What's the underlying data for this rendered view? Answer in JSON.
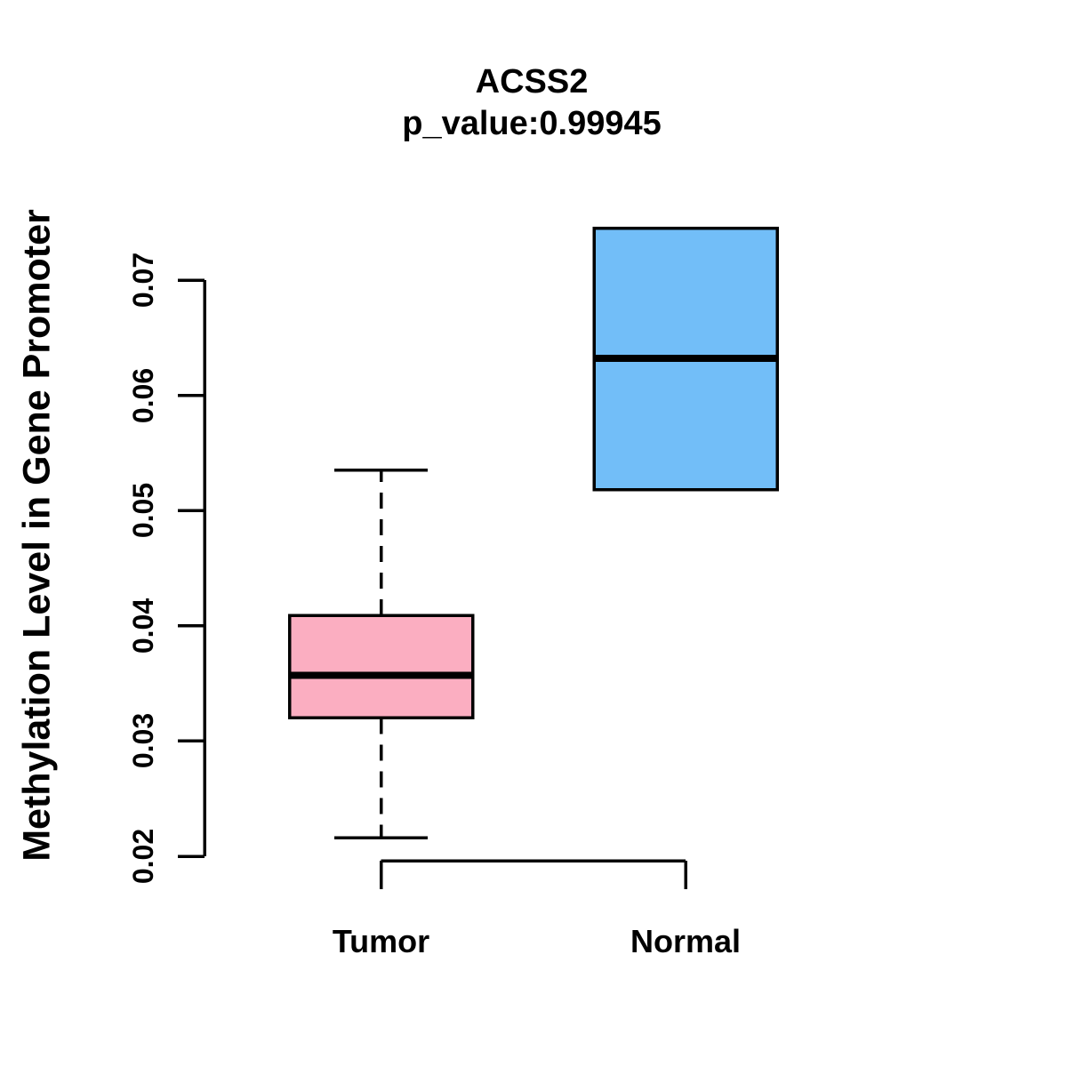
{
  "figure": {
    "background_color": "#ffffff",
    "text_color": "#000000"
  },
  "chart_data": {
    "type": "boxplot",
    "orientation": "vertical",
    "title": "ACSS2",
    "subtitle": "p_value:0.99945",
    "p_value": 0.99945,
    "xlabel": "",
    "ylabel": "Methylation Level in Gene Promoter",
    "ylim": [
      0.02,
      0.075
    ],
    "yticks": [
      0.02,
      0.03,
      0.04,
      0.05,
      0.06,
      0.07
    ],
    "ytick_labels": [
      "0.02",
      "0.03",
      "0.04",
      "0.05",
      "0.06",
      "0.07"
    ],
    "categories": [
      "Tumor",
      "Normal"
    ],
    "grid": false,
    "legend": "none",
    "axis_color": "#000000",
    "series": [
      {
        "name": "Tumor",
        "fill_color": "#FBAEC1",
        "border_color": "#000000",
        "whisker_low": 0.0216,
        "q1": 0.032,
        "median": 0.0357,
        "q3": 0.0409,
        "whisker_high": 0.0535,
        "whisker_style": "dashed"
      },
      {
        "name": "Normal",
        "fill_color": "#72BEF8",
        "border_color": "#000000",
        "whisker_low": 0.0518,
        "q1": 0.0518,
        "median": 0.0632,
        "q3": 0.0745,
        "whisker_high": 0.0745,
        "whisker_style": "none"
      }
    ]
  }
}
